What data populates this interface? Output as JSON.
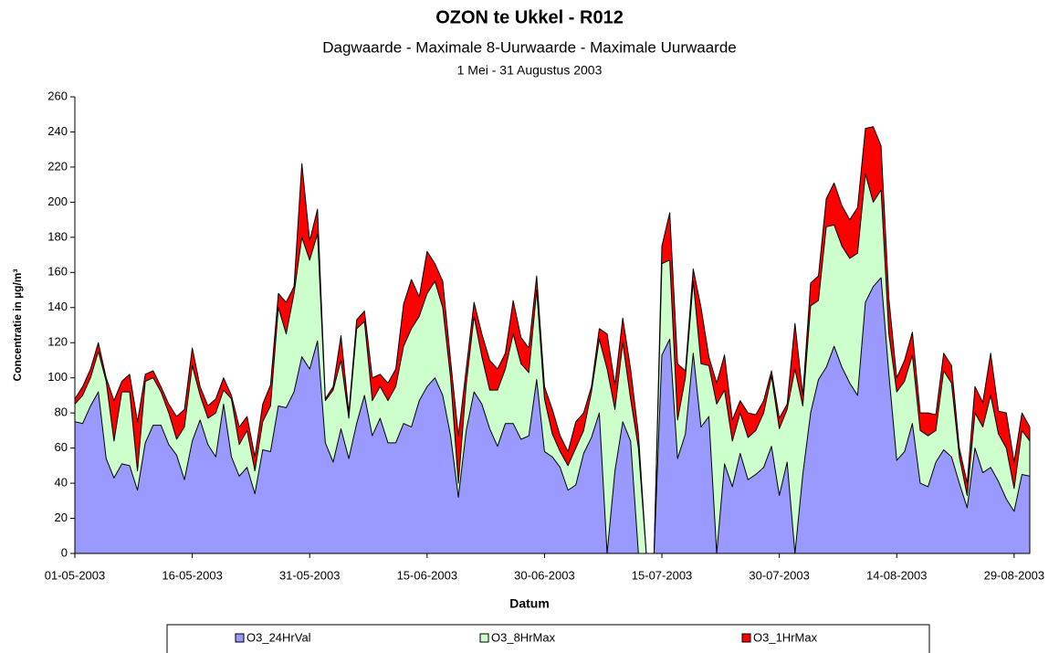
{
  "chart_data": {
    "type": "area",
    "title": "OZON te Ukkel - R012",
    "subtitle": "Dagwaarde  -  Maximale 8-Uurwaarde  -  Maximale Uurwaarde",
    "subtitle2": "1 Mei - 31 Augustus 2003",
    "xlabel": "Datum",
    "ylabel": "Concentratie in µg/m³",
    "x": [
      "01-05-2003",
      null,
      null,
      null,
      null,
      null,
      null,
      null,
      null,
      null,
      null,
      null,
      null,
      null,
      null,
      "16-05-2003",
      null,
      null,
      null,
      null,
      null,
      null,
      null,
      null,
      null,
      null,
      null,
      null,
      null,
      null,
      "31-05-2003",
      null,
      null,
      null,
      null,
      null,
      null,
      null,
      null,
      null,
      null,
      null,
      null,
      null,
      null,
      "15-06-2003",
      null,
      null,
      null,
      null,
      null,
      null,
      null,
      null,
      null,
      null,
      null,
      null,
      null,
      null,
      "30-06-2003",
      null,
      null,
      null,
      null,
      null,
      null,
      null,
      null,
      null,
      null,
      null,
      null,
      null,
      null,
      "15-07-2003",
      null,
      null,
      null,
      null,
      null,
      null,
      null,
      null,
      null,
      null,
      null,
      null,
      null,
      null,
      "30-07-2003",
      null,
      null,
      null,
      null,
      null,
      null,
      null,
      null,
      null,
      null,
      null,
      null,
      null,
      null,
      "14-08-2003",
      null,
      null,
      null,
      null,
      null,
      null,
      null,
      null,
      null,
      null,
      null,
      null,
      null,
      null,
      "29-08-2003",
      null,
      null
    ],
    "series": [
      {
        "name": "O3_24HrVal",
        "color": "#9999ff",
        "values": [
          75,
          74,
          84,
          92,
          54,
          43,
          51,
          50,
          36,
          63,
          73,
          73,
          62,
          56,
          42,
          64,
          76,
          62,
          55,
          85,
          55,
          44,
          49,
          34,
          59,
          58,
          84,
          83,
          92,
          112,
          105,
          121,
          63,
          52,
          71,
          54,
          74,
          90,
          67,
          77,
          63,
          63,
          74,
          72,
          87,
          95,
          100,
          90,
          67,
          32,
          70,
          92,
          85,
          71,
          61,
          74,
          74,
          65,
          67,
          99,
          58,
          55,
          49,
          36,
          39,
          57,
          66,
          80,
          0,
          47,
          75,
          64,
          0,
          0,
          0,
          113,
          122,
          54,
          68,
          114,
          72,
          78,
          0,
          51,
          38,
          57,
          42,
          45,
          49,
          61,
          33,
          52,
          0,
          45,
          80,
          99,
          106,
          118,
          106,
          97,
          90,
          143,
          152,
          157,
          102,
          53,
          58,
          74,
          40,
          38,
          52,
          59,
          55,
          40,
          26,
          60,
          46,
          49,
          41,
          31,
          24,
          45,
          44
        ]
      },
      {
        "name": "O3_8HrMax",
        "color": "#ccffcc",
        "values": [
          85,
          90,
          100,
          115,
          98,
          64,
          92,
          92,
          47,
          98,
          100,
          92,
          80,
          65,
          72,
          107,
          90,
          77,
          80,
          93,
          88,
          62,
          70,
          47,
          75,
          84,
          140,
          125,
          148,
          180,
          167,
          182,
          87,
          93,
          110,
          77,
          128,
          132,
          87,
          95,
          87,
          95,
          118,
          128,
          135,
          148,
          155,
          140,
          100,
          40,
          96,
          135,
          112,
          93,
          93,
          105,
          125,
          108,
          103,
          150,
          88,
          68,
          58,
          50,
          60,
          70,
          92,
          122,
          105,
          82,
          120,
          88,
          60,
          0,
          0,
          165,
          167,
          76,
          100,
          155,
          108,
          107,
          85,
          93,
          64,
          80,
          66,
          70,
          80,
          101,
          71,
          82,
          105,
          84,
          141,
          144,
          186,
          187,
          175,
          168,
          171,
          216,
          200,
          207,
          125,
          92,
          98,
          113,
          70,
          67,
          70,
          104,
          97,
          55,
          33,
          80,
          72,
          90,
          68,
          60,
          37,
          70,
          64
        ]
      },
      {
        "name": "O3_1HrMax",
        "color": "#ff0000",
        "values": [
          88,
          95,
          105,
          120,
          100,
          87,
          98,
          102,
          75,
          102,
          104,
          95,
          85,
          78,
          82,
          117,
          95,
          84,
          88,
          100,
          90,
          72,
          78,
          55,
          85,
          96,
          148,
          143,
          152,
          222,
          178,
          196,
          88,
          95,
          124,
          80,
          133,
          138,
          100,
          102,
          97,
          105,
          142,
          156,
          146,
          172,
          165,
          155,
          110,
          67,
          105,
          143,
          125,
          110,
          105,
          114,
          144,
          123,
          117,
          158,
          95,
          82,
          67,
          58,
          75,
          80,
          95,
          128,
          125,
          96,
          134,
          105,
          68,
          0,
          0,
          175,
          194,
          108,
          104,
          162,
          140,
          112,
          97,
          113,
          76,
          87,
          80,
          79,
          87,
          104,
          77,
          85,
          131,
          90,
          154,
          158,
          202,
          211,
          198,
          190,
          197,
          242,
          243,
          232,
          145,
          100,
          110,
          126,
          80,
          80,
          79,
          114,
          107,
          60,
          40,
          95,
          86,
          114,
          81,
          80,
          52,
          80,
          72
        ]
      }
    ],
    "ylim": [
      0,
      260
    ],
    "yticks": [
      0,
      20,
      40,
      60,
      80,
      100,
      120,
      140,
      160,
      180,
      200,
      220,
      240,
      260
    ]
  }
}
